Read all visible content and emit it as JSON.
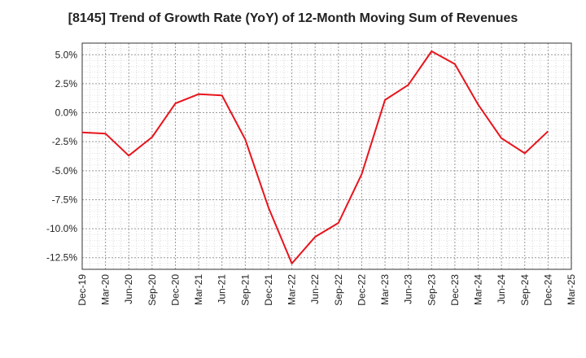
{
  "chart_data": {
    "type": "line",
    "title": "[8145]  Trend of Growth Rate (YoY) of 12-Month Moving Sum of Revenues",
    "xlabel": "",
    "ylabel": "",
    "x_ticks": [
      "Dec-19",
      "Mar-20",
      "Jun-20",
      "Sep-20",
      "Dec-20",
      "Mar-21",
      "Jun-21",
      "Sep-21",
      "Dec-21",
      "Mar-22",
      "Jun-22",
      "Sep-22",
      "Dec-22",
      "Mar-23",
      "Jun-23",
      "Sep-23",
      "Dec-23",
      "Mar-24",
      "Jun-24",
      "Sep-24",
      "Dec-24",
      "Mar-25"
    ],
    "y_ticks": [
      5.0,
      2.5,
      0.0,
      -2.5,
      -5.0,
      -7.5,
      -10.0,
      -12.5
    ],
    "y_tick_labels": [
      "5.0%",
      "2.5%",
      "0.0%",
      "-2.5%",
      "-5.0%",
      "-7.5%",
      "-10.0%",
      "-12.5%"
    ],
    "ylim": [
      -13.5,
      6.0
    ],
    "grid": true,
    "series": [
      {
        "color": "#e8141c",
        "x": [
          "Dec-19",
          "Mar-20",
          "Jun-20",
          "Sep-20",
          "Dec-20",
          "Mar-21",
          "Jun-21",
          "Sep-21",
          "Dec-21",
          "Mar-22",
          "Jun-22",
          "Sep-22",
          "Dec-22",
          "Mar-23",
          "Jun-23",
          "Sep-23",
          "Dec-23",
          "Mar-24",
          "Jun-24",
          "Sep-24",
          "Dec-24"
        ],
        "values": [
          -1.7,
          -1.8,
          -3.7,
          -2.1,
          0.8,
          1.6,
          1.5,
          -2.3,
          -8.2,
          -13.0,
          -10.7,
          -9.5,
          -5.3,
          1.1,
          2.4,
          5.3,
          4.2,
          0.7,
          -2.2,
          -3.5,
          -1.6
        ]
      }
    ]
  }
}
